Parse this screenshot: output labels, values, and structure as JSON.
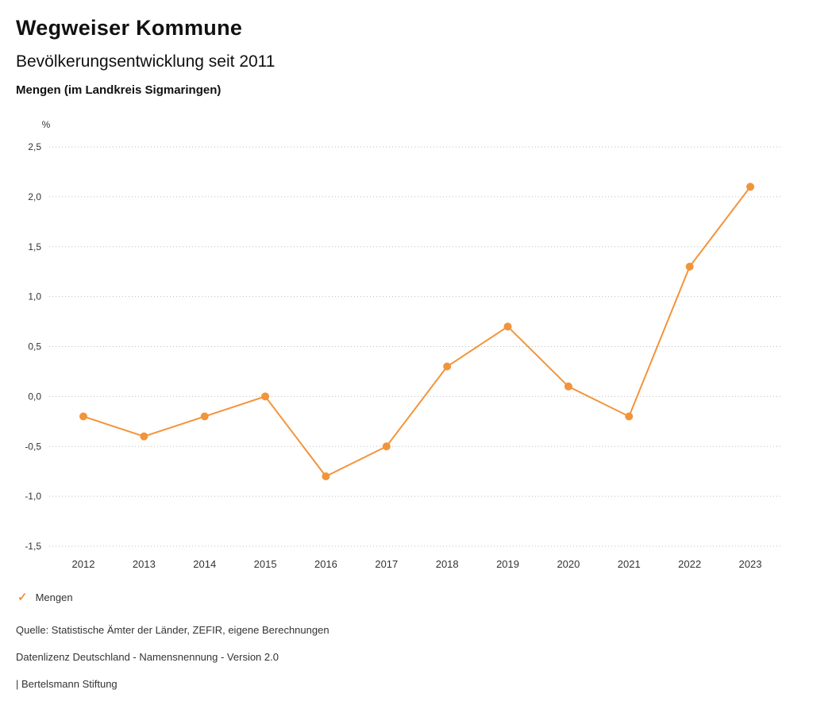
{
  "header": {
    "title": "Wegweiser Kommune",
    "subtitle": "Bevölkerungsentwicklung seit 2011",
    "region": "Mengen (im Landkreis Sigmaringen)"
  },
  "legend": {
    "check_icon": "✓",
    "label": "Mengen",
    "color": "#f2943b"
  },
  "footer": {
    "source": "Quelle: Statistische Ämter der Länder, ZEFIR, eigene Berechnungen",
    "license": "Datenlizenz Deutschland - Namensnennung - Version 2.0",
    "attribution": "| Bertelsmann Stiftung"
  },
  "chart_data": {
    "type": "line",
    "title": "Bevölkerungsentwicklung seit 2011",
    "subtitle": "Mengen (im Landkreis Sigmaringen)",
    "xlabel": "",
    "ylabel": "%",
    "categories": [
      "2012",
      "2013",
      "2014",
      "2015",
      "2016",
      "2017",
      "2018",
      "2019",
      "2020",
      "2021",
      "2022",
      "2023"
    ],
    "series": [
      {
        "name": "Mengen",
        "color": "#f2943b",
        "values": [
          -0.2,
          -0.4,
          -0.2,
          0.0,
          -0.8,
          -0.5,
          0.3,
          0.7,
          0.1,
          -0.2,
          1.3,
          2.1
        ]
      }
    ],
    "ylim": [
      -1.5,
      2.5
    ],
    "yticks": [
      2.5,
      2.0,
      1.5,
      1.0,
      0.5,
      0.0,
      -0.5,
      -1.0,
      -1.5
    ],
    "ytick_labels": [
      "2,5",
      "2,0",
      "1,5",
      "1,0",
      "0,5",
      "0,0",
      "-0,5",
      "-1,0",
      "-1,5"
    ],
    "grid": "horizontal dotted",
    "legend_position": "bottom-left"
  }
}
